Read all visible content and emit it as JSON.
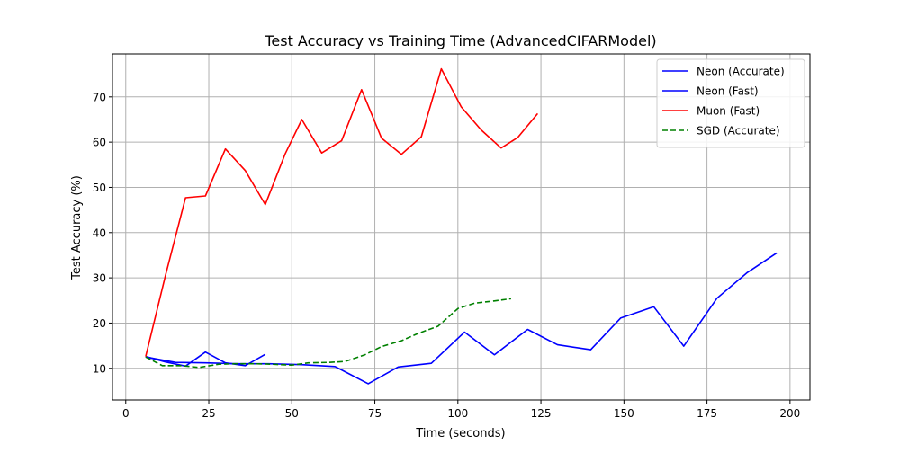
{
  "chart_data": {
    "type": "line",
    "title": "Test Accuracy vs Training Time (AdvancedCIFARModel)",
    "xlabel": "Time (seconds)",
    "ylabel": "Test Accuracy (%)",
    "xlim": [
      -4,
      206
    ],
    "ylim": [
      3,
      79.5
    ],
    "xticks": [
      0,
      25,
      50,
      75,
      100,
      125,
      150,
      175,
      200
    ],
    "yticks": [
      10,
      20,
      30,
      40,
      50,
      60,
      70
    ],
    "grid": true,
    "legend_position": "top-right",
    "series": [
      {
        "name": "Neon (Accurate)",
        "color": "#0000ff",
        "dash": "solid",
        "x": [
          6,
          15,
          24,
          34,
          43,
          53,
          63,
          73,
          82,
          92,
          102,
          111,
          121,
          130,
          140,
          149,
          159,
          168,
          178,
          187,
          196
        ],
        "y": [
          12.5,
          11.3,
          11.2,
          11.0,
          11.0,
          10.8,
          10.4,
          6.6,
          10.3,
          11.1,
          18.0,
          13.0,
          18.6,
          15.2,
          14.1,
          21.1,
          23.6,
          14.9,
          25.5,
          31.1,
          35.5
        ]
      },
      {
        "name": "Neon (Fast)",
        "color": "#0000ff",
        "dash": "solid",
        "x": [
          6,
          12,
          18,
          24,
          30,
          36,
          42,
          48
        ],
        "y": [
          12.6,
          11.4,
          10.5,
          13.6,
          11.2,
          10.6,
          13.1,
          null
        ]
      },
      {
        "name": "Muon (Fast)",
        "color": "#ff0000",
        "dash": "solid",
        "x": [
          6,
          12,
          18,
          24,
          30,
          36,
          42,
          48,
          53,
          59,
          65,
          71,
          77,
          83,
          89,
          95,
          101,
          107,
          113,
          118,
          124
        ],
        "y": [
          12.6,
          30.6,
          47.7,
          48.1,
          58.5,
          53.7,
          46.2,
          57.4,
          65.0,
          57.6,
          60.3,
          71.6,
          60.9,
          57.3,
          61.2,
          76.2,
          67.8,
          62.7,
          58.7,
          61.0,
          66.3
        ]
      },
      {
        "name": "SGD (Accurate)",
        "color": "#008000",
        "dash": "dashed",
        "x": [
          6,
          11,
          17,
          22,
          28,
          33,
          39,
          44,
          50,
          55,
          61,
          66,
          72,
          77,
          83,
          88,
          94,
          100,
          105,
          111,
          116
        ],
        "y": [
          12.5,
          10.6,
          10.6,
          10.2,
          10.9,
          11.0,
          11.0,
          10.9,
          10.7,
          11.2,
          11.3,
          11.5,
          13.0,
          14.8,
          16.1,
          17.7,
          19.3,
          23.2,
          24.4,
          24.9,
          25.4
        ]
      }
    ]
  }
}
